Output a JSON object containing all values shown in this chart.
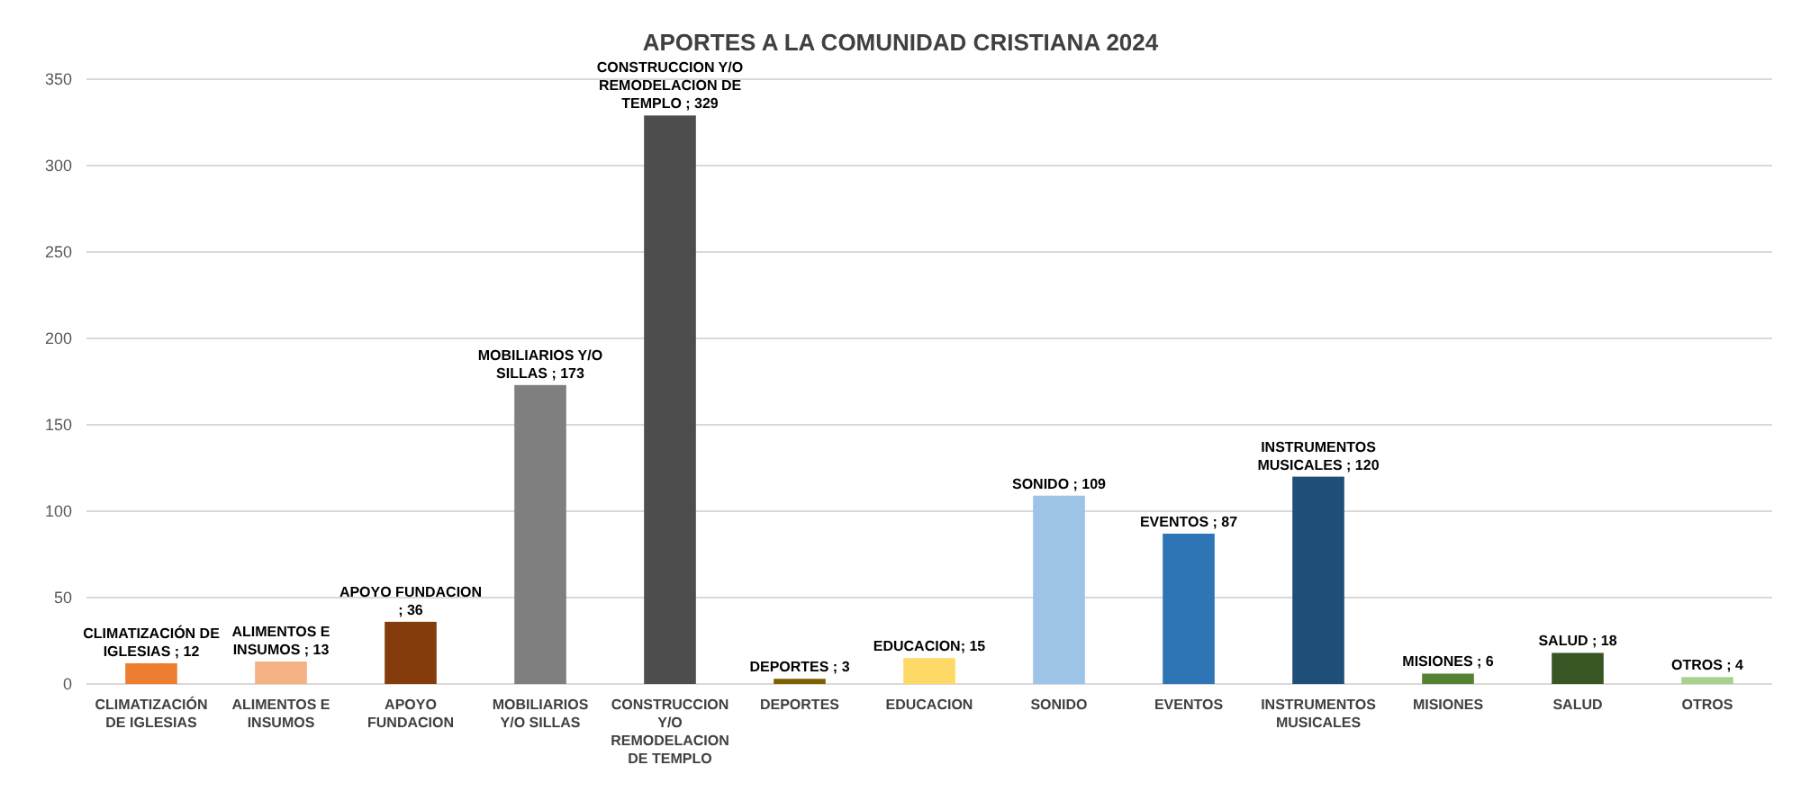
{
  "chart_data": {
    "type": "bar",
    "title": "APORTES A LA COMUNIDAD CRISTIANA 2024",
    "categories": [
      "CLIMATIZACIÓN DE IGLESIAS",
      "ALIMENTOS E INSUMOS",
      "APOYO FUNDACION",
      "MOBILIARIOS Y/O SILLAS",
      "CONSTRUCCION Y/O REMODELACION DE TEMPLO",
      "DEPORTES",
      "EDUCACION",
      "SONIDO",
      "EVENTOS",
      "INSTRUMENTOS MUSICALES",
      "MISIONES",
      "SALUD",
      "OTROS"
    ],
    "values": [
      12,
      13,
      36,
      173,
      329,
      3,
      15,
      109,
      87,
      120,
      6,
      18,
      4
    ],
    "colors": [
      "#ed7d31",
      "#f4b183",
      "#843c0c",
      "#7f7f7f",
      "#4d4d4d",
      "#7f6000",
      "#ffd966",
      "#9dc3e6",
      "#2e75b6",
      "#1f4e79",
      "#548235",
      "#375623",
      "#a9d18e"
    ],
    "value_labels": [
      "CLIMATIZACIÓN DE IGLESIAS ; 12",
      "ALIMENTOS E INSUMOS ; 13",
      "APOYO FUNDACION ; 36",
      "MOBILIARIOS Y/O SILLAS ; 173",
      "CONSTRUCCION Y/O REMODELACION DE TEMPLO ; 329",
      "DEPORTES ; 3",
      "EDUCACION; 15",
      "SONIDO ; 109",
      "EVENTOS ; 87",
      "INSTRUMENTOS MUSICALES ; 120",
      "MISIONES ; 6",
      "SALUD ; 18",
      "OTROS ; 4"
    ],
    "ylim": [
      0,
      350
    ],
    "yticks": [
      0,
      50,
      100,
      150,
      200,
      250,
      300,
      350
    ],
    "grid": "y"
  }
}
